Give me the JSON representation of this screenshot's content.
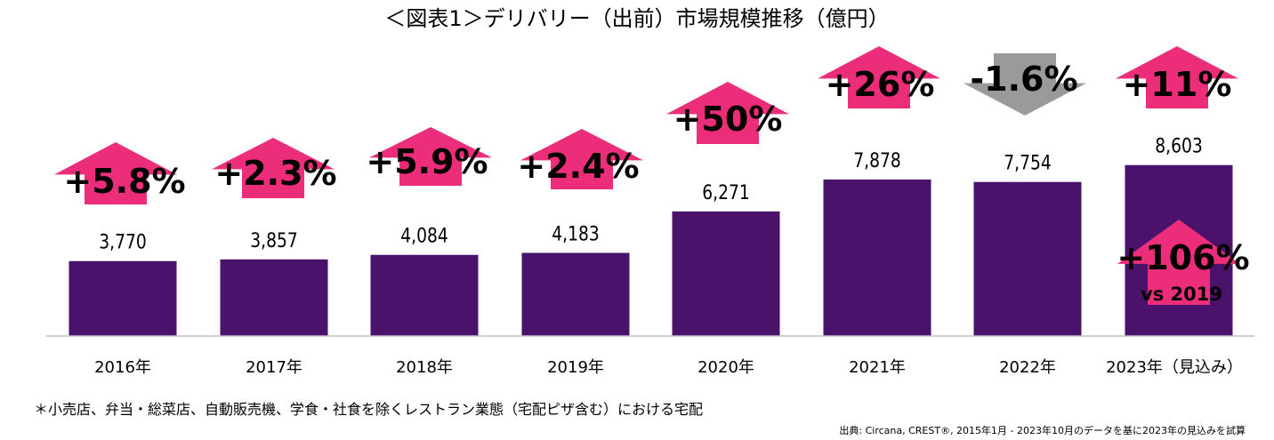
{
  "chart_data": {
    "type": "bar",
    "title": "＜図表1＞デリバリー（出前）市場規模推移（億円）",
    "categories": [
      "2016年",
      "2017年",
      "2018年",
      "2019年",
      "2020年",
      "2021年",
      "2022年",
      "2023年（見込み）"
    ],
    "values": [
      3770,
      3857,
      4084,
      4183,
      6271,
      7878,
      7754,
      8603
    ],
    "value_labels": [
      "3,770",
      "3,857",
      "4,084",
      "4,183",
      "6,271",
      "7,878",
      "7,754",
      "8,603"
    ],
    "growth_labels": [
      "+5.8%",
      "+2.3%",
      "+5.9%",
      "+2.4%",
      "+50%",
      "+26%",
      "-1.6%",
      "+11%"
    ],
    "growth_direction": [
      "up",
      "up",
      "up",
      "up",
      "up",
      "up",
      "down",
      "up"
    ],
    "extra_annotation": {
      "label": "+106%",
      "sublabel": "vs 2019",
      "category_index": 7
    },
    "ylim": [
      0,
      10000
    ],
    "grid": false,
    "colors": {
      "bar": "#4a126b",
      "up_arrow": "#ec2d7a",
      "down_arrow": "#9a9a9a",
      "baseline": "#bfbfbf"
    }
  },
  "footnote": "＊小売店、弁当・総菜店、自動販売機、学食・社食を除くレストラン業態（宅配ピザ含む）における宅配",
  "source": "出典: Circana, CREST®, 2015年1月 - 2023年10月のデータを基に2023年の見込みを試算"
}
